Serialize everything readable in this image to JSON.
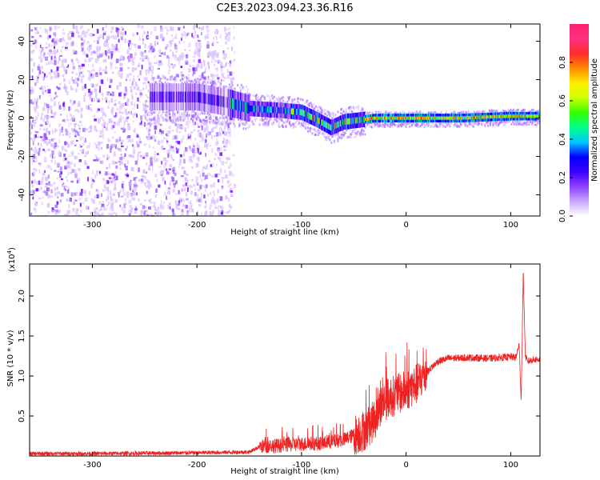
{
  "title": "C2E3.2023.094.23.36.R16",
  "chart_data": [
    {
      "type": "heatmap",
      "xlabel": "Height of straight line (km)",
      "ylabel": "Frequency (Hz)",
      "xlim": [
        -360,
        128
      ],
      "ylim": [
        -51,
        49
      ],
      "x_ticks": [
        -300,
        -200,
        -100,
        0,
        100
      ],
      "x_tick_labels": [
        "-300",
        "-200",
        "-100",
        "0",
        "100"
      ],
      "y_ticks": [
        40,
        20,
        0,
        -20,
        -40
      ],
      "y_tick_labels": [
        "40",
        "20",
        "0",
        "-20",
        "-40"
      ],
      "colorbar": {
        "label": "Normalized spectral amplitude",
        "range": [
          0,
          1
        ],
        "ticks": [
          0.0,
          0.2,
          0.4,
          0.6,
          0.8
        ],
        "tick_labels": [
          "0.0",
          "0.2",
          "0.4",
          "0.6",
          "0.8"
        ],
        "colormap": "rainbow (white-purple-blue-cyan-green-yellow-red-magenta)",
        "colors": [
          "#ffffff",
          "#c9a6ff",
          "#8f3fff",
          "#3a00ff",
          "#0000ff",
          "#00c8ff",
          "#00ff88",
          "#33ff00",
          "#ccff00",
          "#ffee00",
          "#ff8a00",
          "#ff2a2a",
          "#ff3080",
          "#ff1f6e"
        ]
      },
      "ridge": [
        {
          "x": -245,
          "freq": 11
        },
        {
          "x": -200,
          "freq": 11
        },
        {
          "x": -170,
          "freq": 8
        },
        {
          "x": -150,
          "freq": 5
        },
        {
          "x": -120,
          "freq": 4
        },
        {
          "x": -100,
          "freq": 3
        },
        {
          "x": -85,
          "freq": -1
        },
        {
          "x": -72,
          "freq": -5
        },
        {
          "x": -60,
          "freq": -2
        },
        {
          "x": -45,
          "freq": -1
        },
        {
          "x": -30,
          "freq": 0
        },
        {
          "x": 0,
          "freq": 0
        },
        {
          "x": 50,
          "freq": 0
        },
        {
          "x": 100,
          "freq": 1
        },
        {
          "x": 128,
          "freq": 1
        }
      ],
      "noise_region_x": [
        -360,
        -165
      ]
    },
    {
      "type": "line",
      "xlabel": "Height of straight line (km)",
      "ylabel": "SNR (10 * v/v)",
      "scale_label": "(x10",
      "scale_exp": "4",
      "scale_suffix": ")",
      "xlim": [
        -360,
        128
      ],
      "ylim": [
        0,
        24000
      ],
      "x_ticks": [
        -300,
        -200,
        -100,
        0,
        100
      ],
      "x_tick_labels": [
        "-300",
        "-200",
        "-100",
        "0",
        "100"
      ],
      "y_ticks": [
        5000,
        10000,
        15000,
        20000
      ],
      "y_tick_labels": [
        "0.5",
        "1.0",
        "1.5",
        "2.0"
      ],
      "color": "#ee2222",
      "series": [
        {
          "x": [
            -360,
            -300,
            -250,
            -200,
            -150,
            -140,
            -120,
            -100,
            -80,
            -60,
            -50,
            -40,
            -30,
            -25,
            -20,
            -15,
            -10,
            0,
            10,
            20,
            30,
            40,
            60,
            80,
            100,
            105,
            108,
            110,
            112,
            114,
            116,
            120,
            128
          ],
          "y": [
            300,
            300,
            350,
            400,
            500,
            1200,
            1300,
            1500,
            1600,
            2000,
            2600,
            3200,
            4500,
            6200,
            7000,
            7400,
            7600,
            8200,
            9000,
            10500,
            11800,
            12200,
            12300,
            12200,
            12400,
            12300,
            14000,
            7000,
            23000,
            12500,
            11800,
            12000,
            12100
          ]
        }
      ]
    }
  ]
}
